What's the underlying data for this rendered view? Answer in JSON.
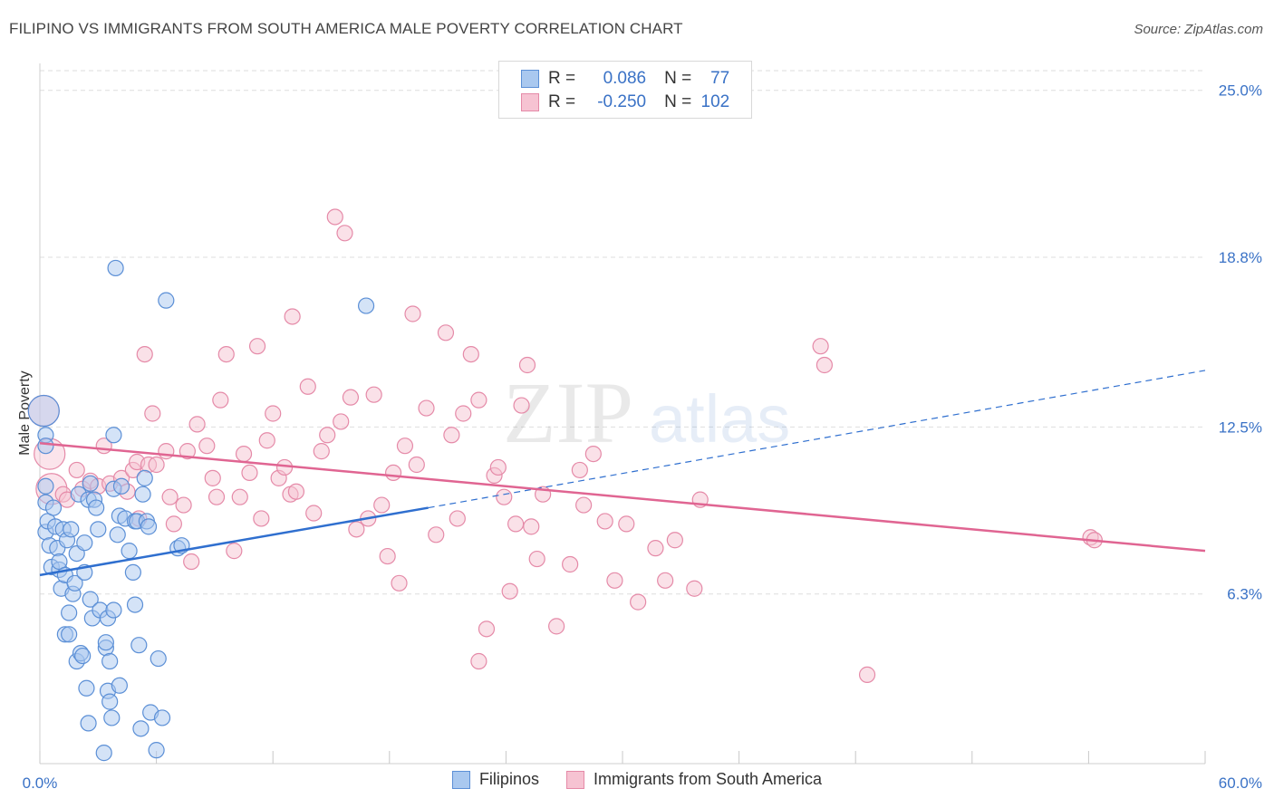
{
  "title": "FILIPINO VS IMMIGRANTS FROM SOUTH AMERICA MALE POVERTY CORRELATION CHART",
  "source": "Source: ZipAtlas.com",
  "watermark": {
    "zip": "ZIP",
    "atlas": "atlas"
  },
  "colors": {
    "blue_fill": "#a9c8ef",
    "blue_stroke": "#5b8fd6",
    "blue_line": "#2f6fcf",
    "pink_fill": "#f6c3d2",
    "pink_stroke": "#e58aa8",
    "pink_line": "#e06592",
    "axis_label": "#3a72c6"
  },
  "legend": {
    "r_label": "R =",
    "n_label": "N =",
    "rows": [
      {
        "series": "Filipinos",
        "r": "0.086",
        "n": "77"
      },
      {
        "series": "Immigrants from South America",
        "r": "-0.250",
        "n": "102"
      }
    ]
  },
  "chart_data": {
    "type": "scatter",
    "xlabel": "",
    "ylabel": "Male Poverty",
    "xlim": [
      0,
      60
    ],
    "ylim": [
      0,
      26
    ],
    "x_tick_labels": [
      "0.0%",
      "60.0%"
    ],
    "y_ticks": [
      6.3,
      12.5,
      18.8,
      25.0
    ],
    "y_tick_labels": [
      "6.3%",
      "12.5%",
      "18.8%",
      "25.0%"
    ],
    "grid": true,
    "legend_position": "top-center",
    "series": [
      {
        "name": "Filipinos",
        "trend": {
          "x": [
            0,
            20
          ],
          "y": [
            7.0,
            9.5
          ],
          "extended_dashed_to": {
            "x": 60,
            "y": 14.6
          }
        },
        "points": [
          {
            "x": 0.2,
            "y": 13.1,
            "big": true
          },
          {
            "x": 0.3,
            "y": 12.2
          },
          {
            "x": 0.3,
            "y": 11.8
          },
          {
            "x": 0.3,
            "y": 10.3
          },
          {
            "x": 0.3,
            "y": 9.7
          },
          {
            "x": 0.3,
            "y": 8.6
          },
          {
            "x": 0.4,
            "y": 9.0
          },
          {
            "x": 0.5,
            "y": 8.1
          },
          {
            "x": 0.6,
            "y": 7.3
          },
          {
            "x": 0.7,
            "y": 9.5
          },
          {
            "x": 0.8,
            "y": 8.8
          },
          {
            "x": 0.9,
            "y": 8.0
          },
          {
            "x": 1.0,
            "y": 7.2
          },
          {
            "x": 1.0,
            "y": 7.5
          },
          {
            "x": 1.1,
            "y": 6.5
          },
          {
            "x": 1.2,
            "y": 8.7
          },
          {
            "x": 1.3,
            "y": 7.0
          },
          {
            "x": 1.3,
            "y": 4.8
          },
          {
            "x": 1.4,
            "y": 8.3
          },
          {
            "x": 1.5,
            "y": 4.8
          },
          {
            "x": 1.5,
            "y": 5.6
          },
          {
            "x": 1.6,
            "y": 8.7
          },
          {
            "x": 1.7,
            "y": 6.3
          },
          {
            "x": 1.8,
            "y": 6.7
          },
          {
            "x": 1.9,
            "y": 7.8
          },
          {
            "x": 1.9,
            "y": 3.8
          },
          {
            "x": 2.0,
            "y": 10.0
          },
          {
            "x": 2.1,
            "y": 4.1
          },
          {
            "x": 2.2,
            "y": 4.0
          },
          {
            "x": 2.3,
            "y": 7.1
          },
          {
            "x": 2.3,
            "y": 8.2
          },
          {
            "x": 2.4,
            "y": 2.8
          },
          {
            "x": 2.5,
            "y": 1.5
          },
          {
            "x": 2.5,
            "y": 9.8
          },
          {
            "x": 2.6,
            "y": 10.4
          },
          {
            "x": 2.6,
            "y": 6.1
          },
          {
            "x": 2.7,
            "y": 5.4
          },
          {
            "x": 2.8,
            "y": 9.8
          },
          {
            "x": 2.9,
            "y": 9.5
          },
          {
            "x": 3.0,
            "y": 8.7
          },
          {
            "x": 3.1,
            "y": 5.7
          },
          {
            "x": 3.3,
            "y": 0.4
          },
          {
            "x": 3.4,
            "y": 4.3
          },
          {
            "x": 3.4,
            "y": 4.5
          },
          {
            "x": 3.5,
            "y": 2.7
          },
          {
            "x": 3.5,
            "y": 5.4
          },
          {
            "x": 3.6,
            "y": 3.8
          },
          {
            "x": 3.6,
            "y": 2.3
          },
          {
            "x": 3.7,
            "y": 1.7
          },
          {
            "x": 3.8,
            "y": 5.7
          },
          {
            "x": 3.8,
            "y": 10.2
          },
          {
            "x": 3.8,
            "y": 12.2
          },
          {
            "x": 3.9,
            "y": 18.4
          },
          {
            "x": 4.0,
            "y": 8.5
          },
          {
            "x": 4.1,
            "y": 9.2
          },
          {
            "x": 4.1,
            "y": 2.9
          },
          {
            "x": 4.2,
            "y": 10.3
          },
          {
            "x": 4.4,
            "y": 9.1
          },
          {
            "x": 4.6,
            "y": 7.9
          },
          {
            "x": 4.8,
            "y": 7.1
          },
          {
            "x": 4.9,
            "y": 5.9
          },
          {
            "x": 4.9,
            "y": 9.0
          },
          {
            "x": 5.0,
            "y": 9.0
          },
          {
            "x": 5.2,
            "y": 1.3
          },
          {
            "x": 5.1,
            "y": 4.4
          },
          {
            "x": 5.3,
            "y": 10.0
          },
          {
            "x": 5.4,
            "y": 10.6
          },
          {
            "x": 5.5,
            "y": 9.0
          },
          {
            "x": 5.6,
            "y": 8.8
          },
          {
            "x": 5.7,
            "y": 1.9
          },
          {
            "x": 6.0,
            "y": 0.5
          },
          {
            "x": 6.1,
            "y": 3.9
          },
          {
            "x": 6.3,
            "y": 1.7
          },
          {
            "x": 6.5,
            "y": 17.2
          },
          {
            "x": 7.1,
            "y": 8.0
          },
          {
            "x": 7.3,
            "y": 8.1
          },
          {
            "x": 16.8,
            "y": 17.0
          }
        ]
      },
      {
        "name": "Immigrants from South America",
        "trend": {
          "x": [
            0,
            60
          ],
          "y": [
            11.9,
            7.9
          ]
        },
        "points": [
          {
            "x": 0.2,
            "y": 13.1,
            "big": true
          },
          {
            "x": 0.5,
            "y": 11.5,
            "big": true
          },
          {
            "x": 0.6,
            "y": 10.2,
            "big": true
          },
          {
            "x": 1.2,
            "y": 10.0
          },
          {
            "x": 1.4,
            "y": 9.8
          },
          {
            "x": 1.9,
            "y": 10.9
          },
          {
            "x": 2.2,
            "y": 10.2
          },
          {
            "x": 2.6,
            "y": 10.5
          },
          {
            "x": 3.0,
            "y": 10.3
          },
          {
            "x": 3.3,
            "y": 11.8
          },
          {
            "x": 3.6,
            "y": 10.4
          },
          {
            "x": 4.2,
            "y": 10.6
          },
          {
            "x": 4.5,
            "y": 10.1
          },
          {
            "x": 4.8,
            "y": 10.9
          },
          {
            "x": 5.0,
            "y": 11.2
          },
          {
            "x": 5.1,
            "y": 9.1
          },
          {
            "x": 5.4,
            "y": 15.2
          },
          {
            "x": 5.6,
            "y": 11.1
          },
          {
            "x": 5.8,
            "y": 13.0
          },
          {
            "x": 6.0,
            "y": 11.1
          },
          {
            "x": 6.5,
            "y": 11.6
          },
          {
            "x": 6.7,
            "y": 9.9
          },
          {
            "x": 6.9,
            "y": 8.9
          },
          {
            "x": 7.4,
            "y": 9.6
          },
          {
            "x": 7.6,
            "y": 11.6
          },
          {
            "x": 7.8,
            "y": 7.5
          },
          {
            "x": 8.1,
            "y": 12.6
          },
          {
            "x": 8.6,
            "y": 11.8
          },
          {
            "x": 8.9,
            "y": 10.6
          },
          {
            "x": 9.1,
            "y": 9.9
          },
          {
            "x": 9.3,
            "y": 13.5
          },
          {
            "x": 9.6,
            "y": 15.2
          },
          {
            "x": 10.0,
            "y": 7.9
          },
          {
            "x": 10.3,
            "y": 9.9
          },
          {
            "x": 10.5,
            "y": 11.5
          },
          {
            "x": 10.8,
            "y": 10.8
          },
          {
            "x": 11.2,
            "y": 15.5
          },
          {
            "x": 11.4,
            "y": 9.1
          },
          {
            "x": 11.7,
            "y": 12.0
          },
          {
            "x": 12.0,
            "y": 13.0
          },
          {
            "x": 12.3,
            "y": 10.6
          },
          {
            "x": 12.6,
            "y": 11.0
          },
          {
            "x": 12.9,
            "y": 10.0
          },
          {
            "x": 13.0,
            "y": 16.6
          },
          {
            "x": 13.2,
            "y": 10.1
          },
          {
            "x": 13.8,
            "y": 14.0
          },
          {
            "x": 14.1,
            "y": 9.3
          },
          {
            "x": 14.5,
            "y": 11.6
          },
          {
            "x": 14.8,
            "y": 12.2
          },
          {
            "x": 15.2,
            "y": 20.3
          },
          {
            "x": 15.5,
            "y": 12.7
          },
          {
            "x": 15.7,
            "y": 19.7
          },
          {
            "x": 16.0,
            "y": 13.6
          },
          {
            "x": 16.3,
            "y": 8.7
          },
          {
            "x": 16.9,
            "y": 9.1
          },
          {
            "x": 17.2,
            "y": 13.7
          },
          {
            "x": 17.6,
            "y": 9.6
          },
          {
            "x": 17.9,
            "y": 7.7
          },
          {
            "x": 18.2,
            "y": 10.8
          },
          {
            "x": 18.5,
            "y": 6.7
          },
          {
            "x": 18.8,
            "y": 11.8
          },
          {
            "x": 19.2,
            "y": 16.7
          },
          {
            "x": 19.4,
            "y": 11.1
          },
          {
            "x": 19.9,
            "y": 13.2
          },
          {
            "x": 20.4,
            "y": 8.5
          },
          {
            "x": 20.9,
            "y": 16.0
          },
          {
            "x": 21.2,
            "y": 12.2
          },
          {
            "x": 21.5,
            "y": 9.1
          },
          {
            "x": 21.8,
            "y": 13.0
          },
          {
            "x": 22.2,
            "y": 15.2
          },
          {
            "x": 22.6,
            "y": 13.5
          },
          {
            "x": 23.0,
            "y": 5.0
          },
          {
            "x": 23.4,
            "y": 10.7
          },
          {
            "x": 23.6,
            "y": 11.0
          },
          {
            "x": 23.9,
            "y": 9.9
          },
          {
            "x": 24.2,
            "y": 6.4
          },
          {
            "x": 24.8,
            "y": 13.3
          },
          {
            "x": 25.1,
            "y": 14.8
          },
          {
            "x": 25.3,
            "y": 8.8
          },
          {
            "x": 25.6,
            "y": 7.6
          },
          {
            "x": 25.9,
            "y": 10.0
          },
          {
            "x": 26.6,
            "y": 5.1
          },
          {
            "x": 27.3,
            "y": 7.4
          },
          {
            "x": 27.8,
            "y": 10.9
          },
          {
            "x": 28.0,
            "y": 9.6
          },
          {
            "x": 28.5,
            "y": 11.5
          },
          {
            "x": 29.1,
            "y": 9.0
          },
          {
            "x": 29.6,
            "y": 6.8
          },
          {
            "x": 30.2,
            "y": 8.9
          },
          {
            "x": 30.8,
            "y": 6.0
          },
          {
            "x": 31.7,
            "y": 8.0
          },
          {
            "x": 32.2,
            "y": 6.8
          },
          {
            "x": 32.7,
            "y": 8.3
          },
          {
            "x": 33.7,
            "y": 6.5
          },
          {
            "x": 34.0,
            "y": 9.8
          },
          {
            "x": 40.2,
            "y": 15.5
          },
          {
            "x": 40.4,
            "y": 14.8
          },
          {
            "x": 42.6,
            "y": 3.3
          },
          {
            "x": 22.6,
            "y": 3.8
          },
          {
            "x": 24.5,
            "y": 8.9
          },
          {
            "x": 54.1,
            "y": 8.4
          },
          {
            "x": 54.3,
            "y": 8.3
          }
        ]
      }
    ]
  }
}
